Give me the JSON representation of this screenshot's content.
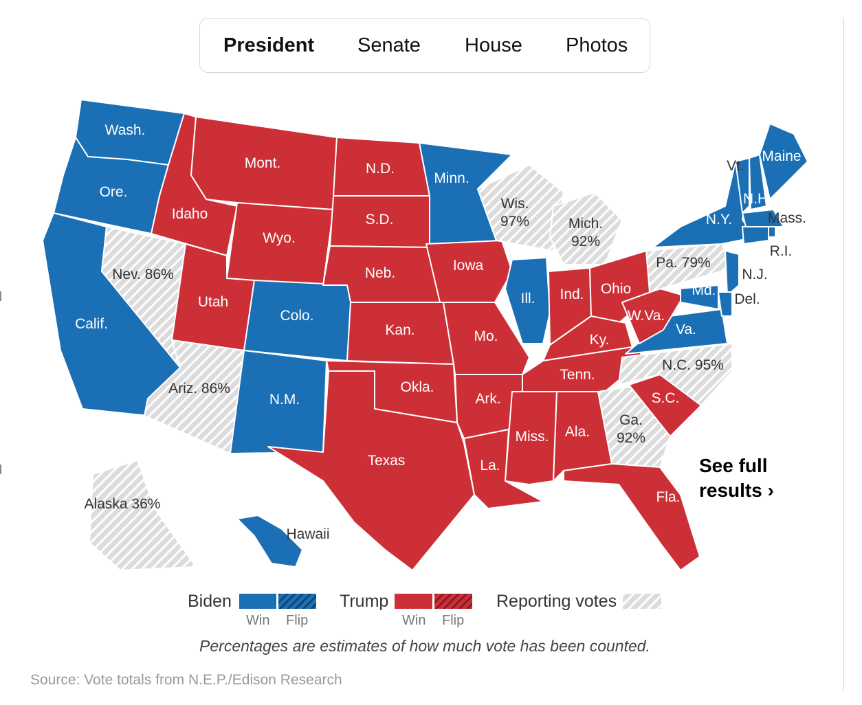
{
  "tabs": [
    {
      "label": "President",
      "active": true
    },
    {
      "label": "Senate",
      "active": false
    },
    {
      "label": "House",
      "active": false
    },
    {
      "label": "Photos",
      "active": false
    }
  ],
  "colors": {
    "biden": "#1a6fb5",
    "trump": "#cd2f37",
    "reporting": "#dcdcdc",
    "reporting_stripe": "#ffffff"
  },
  "states": [
    {
      "abbr": "WA",
      "label": "Wash.",
      "status": "biden"
    },
    {
      "abbr": "OR",
      "label": "Ore.",
      "status": "biden"
    },
    {
      "abbr": "CA",
      "label": "Calif.",
      "status": "biden"
    },
    {
      "abbr": "NV",
      "label": "Nev. 86%",
      "status": "reporting"
    },
    {
      "abbr": "ID",
      "label": "Idaho",
      "status": "trump"
    },
    {
      "abbr": "MT",
      "label": "Mont.",
      "status": "trump"
    },
    {
      "abbr": "WY",
      "label": "Wyo.",
      "status": "trump"
    },
    {
      "abbr": "UT",
      "label": "Utah",
      "status": "trump"
    },
    {
      "abbr": "CO",
      "label": "Colo.",
      "status": "biden"
    },
    {
      "abbr": "AZ",
      "label": "Ariz. 86%",
      "status": "reporting"
    },
    {
      "abbr": "NM",
      "label": "N.M.",
      "status": "biden"
    },
    {
      "abbr": "ND",
      "label": "N.D.",
      "status": "trump"
    },
    {
      "abbr": "SD",
      "label": "S.D.",
      "status": "trump"
    },
    {
      "abbr": "NE",
      "label": "Neb.",
      "status": "trump"
    },
    {
      "abbr": "KS",
      "label": "Kan.",
      "status": "trump"
    },
    {
      "abbr": "OK",
      "label": "Okla.",
      "status": "trump"
    },
    {
      "abbr": "TX",
      "label": "Texas",
      "status": "trump"
    },
    {
      "abbr": "MN",
      "label": "Minn.",
      "status": "biden"
    },
    {
      "abbr": "IA",
      "label": "Iowa",
      "status": "trump"
    },
    {
      "abbr": "MO",
      "label": "Mo.",
      "status": "trump"
    },
    {
      "abbr": "AR",
      "label": "Ark.",
      "status": "trump"
    },
    {
      "abbr": "LA",
      "label": "La.",
      "status": "trump"
    },
    {
      "abbr": "WI",
      "label": "Wis. 97%",
      "status": "reporting"
    },
    {
      "abbr": "IL",
      "label": "Ill.",
      "status": "biden"
    },
    {
      "abbr": "MI",
      "label": "Mich. 92%",
      "status": "reporting"
    },
    {
      "abbr": "IN",
      "label": "Ind.",
      "status": "trump"
    },
    {
      "abbr": "OH",
      "label": "Ohio",
      "status": "trump"
    },
    {
      "abbr": "KY",
      "label": "Ky.",
      "status": "trump"
    },
    {
      "abbr": "TN",
      "label": "Tenn.",
      "status": "trump"
    },
    {
      "abbr": "MS",
      "label": "Miss.",
      "status": "trump"
    },
    {
      "abbr": "AL",
      "label": "Ala.",
      "status": "trump"
    },
    {
      "abbr": "GA",
      "label": "Ga. 92%",
      "status": "reporting"
    },
    {
      "abbr": "FL",
      "label": "Fla.",
      "status": "trump"
    },
    {
      "abbr": "SC",
      "label": "S.C.",
      "status": "trump"
    },
    {
      "abbr": "NC",
      "label": "N.C. 95%",
      "status": "reporting"
    },
    {
      "abbr": "VA",
      "label": "Va.",
      "status": "biden"
    },
    {
      "abbr": "WV",
      "label": "W.Va.",
      "status": "trump"
    },
    {
      "abbr": "PA",
      "label": "Pa. 79%",
      "status": "reporting"
    },
    {
      "abbr": "NY",
      "label": "N.Y.",
      "status": "biden"
    },
    {
      "abbr": "VT",
      "label": "Vt.",
      "status": "biden"
    },
    {
      "abbr": "NH",
      "label": "N.H.",
      "status": "biden"
    },
    {
      "abbr": "ME",
      "label": "Maine",
      "status": "biden"
    },
    {
      "abbr": "MA",
      "label": "Mass.",
      "status": "biden"
    },
    {
      "abbr": "RI",
      "label": "R.I.",
      "status": "biden"
    },
    {
      "abbr": "CT",
      "label": "",
      "status": "biden"
    },
    {
      "abbr": "NJ",
      "label": "N.J.",
      "status": "biden"
    },
    {
      "abbr": "DE",
      "label": "Del.",
      "status": "biden"
    },
    {
      "abbr": "MD",
      "label": "Md.",
      "status": "biden"
    },
    {
      "abbr": "AK",
      "label": "Alaska 36%",
      "status": "reporting"
    },
    {
      "abbr": "HI",
      "label": "Hawaii",
      "status": "biden"
    }
  ],
  "see_full": {
    "line1": "See full",
    "line2": "results ›"
  },
  "legend": {
    "biden": "Biden",
    "trump": "Trump",
    "reporting": "Reporting votes",
    "win": "Win",
    "flip": "Flip"
  },
  "note": "Percentages are estimates of how much vote has been counted.",
  "source": "Source: Vote totals from N.E.P./Edison Research"
}
